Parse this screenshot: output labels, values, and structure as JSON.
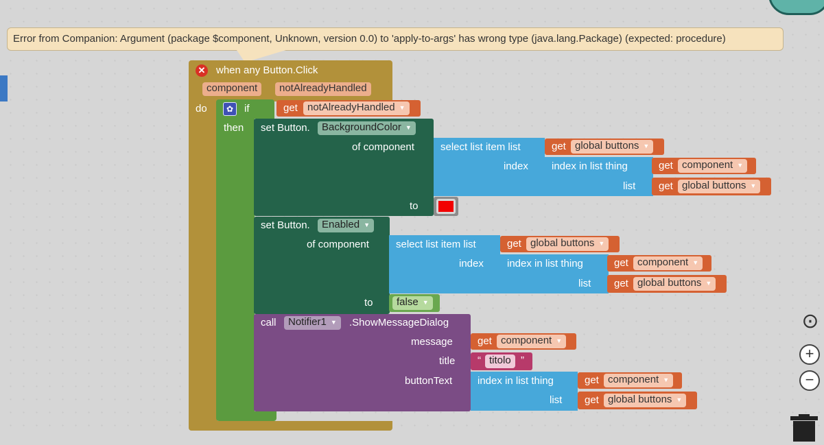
{
  "error_tooltip": "Error from Companion: Argument (package $component, Unknown, version 0.0) to 'apply-to-args' has wrong type (java.lang.Package) (expected: procedure)",
  "event": {
    "title": "when any Button.Click",
    "params": [
      "component",
      "notAlreadyHandled"
    ],
    "do_label": "do"
  },
  "if_block": {
    "if_label": "if",
    "then_label": "then",
    "condition": {
      "get_label": "get",
      "var": "notAlreadyHandled"
    }
  },
  "set_bg": {
    "prefix": "set Button.",
    "property": "BackgroundColor",
    "of_component_label": "of component",
    "to_label": "to",
    "select": {
      "label": "select list item  list",
      "index_label": "index",
      "list_get": {
        "get_label": "get",
        "var": "global buttons"
      },
      "index_in_list": {
        "label": "index in list  thing",
        "list_label": "list",
        "thing_get": {
          "get_label": "get",
          "var": "component"
        },
        "list_get": {
          "get_label": "get",
          "var": "global buttons"
        }
      }
    },
    "color": "#f20000"
  },
  "set_enabled": {
    "prefix": "set Button.",
    "property": "Enabled",
    "of_component_label": "of component",
    "to_label": "to",
    "value": "false",
    "select": {
      "label": "select list item  list",
      "index_label": "index",
      "list_get": {
        "get_label": "get",
        "var": "global buttons"
      },
      "index_in_list": {
        "label": "index in list  thing",
        "list_label": "list",
        "thing_get": {
          "get_label": "get",
          "var": "component"
        },
        "list_get": {
          "get_label": "get",
          "var": "global buttons"
        }
      }
    }
  },
  "call_block": {
    "call_label": "call",
    "component": "Notifier1",
    "method": ".ShowMessageDialog",
    "message_label": "message",
    "title_label": "title",
    "button_text_label": "buttonText",
    "message_get": {
      "get_label": "get",
      "var": "component"
    },
    "title_text": "titolo",
    "quote_open": "“",
    "quote_close": "”",
    "button_text": {
      "label": "index in list  thing",
      "list_label": "list",
      "thing_get": {
        "get_label": "get",
        "var": "component"
      },
      "list_get": {
        "get_label": "get",
        "var": "global buttons"
      }
    }
  },
  "controls": {
    "center_label": "⊙",
    "zoom_in_label": "+",
    "zoom_out_label": "−"
  },
  "colors": {
    "event": "#b2913a",
    "setter": "#24634a",
    "lists": "#47a8da",
    "variables": "#d56132",
    "call": "#7b4c85",
    "logic": "#6aa84f",
    "text": "#b73a6a"
  }
}
